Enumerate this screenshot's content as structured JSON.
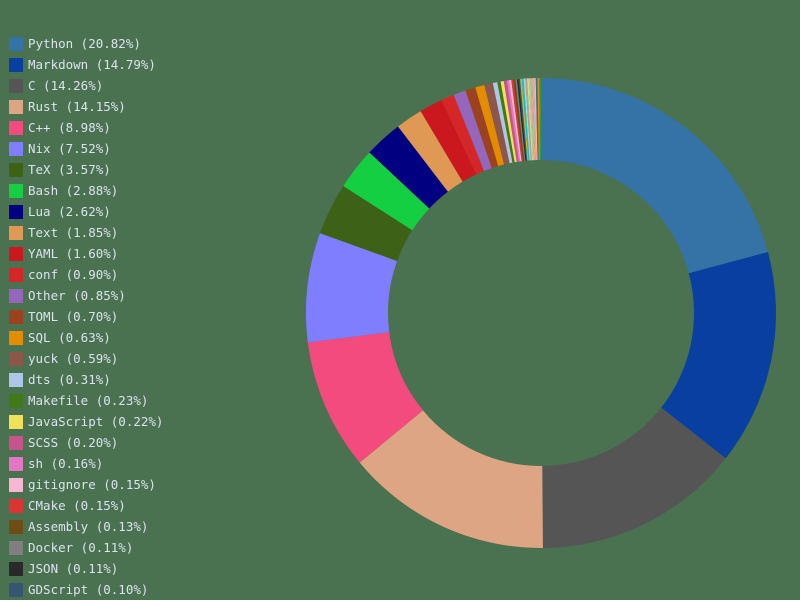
{
  "chart_data": {
    "type": "pie",
    "subtype": "donut",
    "title": "",
    "legend_position": "left",
    "center": [
      541,
      313
    ],
    "outer_radius": 235,
    "inner_radius": 153,
    "start_angle_deg": 0,
    "direction": "clockwise",
    "slices": [
      {
        "label": "Python",
        "value": 20.82,
        "color": "#3572A5"
      },
      {
        "label": "Markdown",
        "value": 14.79,
        "color": "#083fa1"
      },
      {
        "label": "C",
        "value": 14.26,
        "color": "#555555"
      },
      {
        "label": "Rust",
        "value": 14.15,
        "color": "#dea584"
      },
      {
        "label": "C++",
        "value": 8.98,
        "color": "#f34b7d"
      },
      {
        "label": "Nix",
        "value": 7.52,
        "color": "#7e7eff"
      },
      {
        "label": "TeX",
        "value": 3.57,
        "color": "#3D6117"
      },
      {
        "label": "Bash",
        "value": 2.88,
        "color": "#15cf42"
      },
      {
        "label": "Lua",
        "value": 2.62,
        "color": "#000080"
      },
      {
        "label": "Text",
        "value": 1.85,
        "color": "#df9955"
      },
      {
        "label": "YAML",
        "value": 1.6,
        "color": "#cb171e"
      },
      {
        "label": "conf",
        "value": 0.9,
        "color": "#d62728"
      },
      {
        "label": "Other",
        "value": 0.85,
        "color": "#9467bd"
      },
      {
        "label": "TOML",
        "value": 0.7,
        "color": "#9c4221"
      },
      {
        "label": "SQL",
        "value": 0.63,
        "color": "#e38c00"
      },
      {
        "label": "yuck",
        "value": 0.59,
        "color": "#8c564b"
      },
      {
        "label": "dts",
        "value": 0.31,
        "color": "#aec7e8"
      },
      {
        "label": "Makefile",
        "value": 0.23,
        "color": "#427819"
      },
      {
        "label": "JavaScript",
        "value": 0.22,
        "color": "#f1e05a"
      },
      {
        "label": "SCSS",
        "value": 0.2,
        "color": "#c6538c"
      },
      {
        "label": "sh",
        "value": 0.16,
        "color": "#e377c2"
      },
      {
        "label": "gitignore",
        "value": 0.15,
        "color": "#f7b6d2"
      },
      {
        "label": "CMake",
        "value": 0.15,
        "color": "#DA3434"
      },
      {
        "label": "Assembly",
        "value": 0.13,
        "color": "#6E4C13"
      },
      {
        "label": "Docker",
        "value": 0.11,
        "color": "#7f7f7f"
      },
      {
        "label": "JSON",
        "value": 0.11,
        "color": "#292929"
      },
      {
        "label": "GDScript",
        "value": 0.1,
        "color": "#355570"
      }
    ],
    "unlabeled_tail_colors": [
      "#bcbd22",
      "#17becf",
      "#9edae5",
      "#c49c94",
      "#dbdb8d",
      "#98df8a",
      "#ff9896",
      "#c5b0d5",
      "#ffbb78",
      "#1f77b4",
      "#ff7f0e",
      "#2ca02c"
    ]
  },
  "legend": {
    "items": [
      {
        "text": "Python (20.82%)",
        "color": "#3572A5"
      },
      {
        "text": "Markdown (14.79%)",
        "color": "#083fa1"
      },
      {
        "text": "C (14.26%)",
        "color": "#555555"
      },
      {
        "text": "Rust (14.15%)",
        "color": "#dea584"
      },
      {
        "text": "C++ (8.98%)",
        "color": "#f34b7d"
      },
      {
        "text": "Nix (7.52%)",
        "color": "#7e7eff"
      },
      {
        "text": "TeX (3.57%)",
        "color": "#3D6117"
      },
      {
        "text": "Bash (2.88%)",
        "color": "#15cf42"
      },
      {
        "text": "Lua (2.62%)",
        "color": "#000080"
      },
      {
        "text": "Text (1.85%)",
        "color": "#df9955"
      },
      {
        "text": "YAML (1.60%)",
        "color": "#cb171e"
      },
      {
        "text": "conf (0.90%)",
        "color": "#d62728"
      },
      {
        "text": "Other (0.85%)",
        "color": "#9467bd"
      },
      {
        "text": "TOML (0.70%)",
        "color": "#9c4221"
      },
      {
        "text": "SQL (0.63%)",
        "color": "#e38c00"
      },
      {
        "text": "yuck (0.59%)",
        "color": "#8c564b"
      },
      {
        "text": "dts (0.31%)",
        "color": "#aec7e8"
      },
      {
        "text": "Makefile (0.23%)",
        "color": "#427819"
      },
      {
        "text": "JavaScript (0.22%)",
        "color": "#f1e05a"
      },
      {
        "text": "SCSS (0.20%)",
        "color": "#c6538c"
      },
      {
        "text": "sh (0.16%)",
        "color": "#e377c2"
      },
      {
        "text": "gitignore (0.15%)",
        "color": "#f7b6d2"
      },
      {
        "text": "CMake (0.15%)",
        "color": "#DA3434"
      },
      {
        "text": "Assembly (0.13%)",
        "color": "#6E4C13"
      },
      {
        "text": "Docker (0.11%)",
        "color": "#7f7f7f"
      },
      {
        "text": "JSON (0.11%)",
        "color": "#292929"
      },
      {
        "text": "GDScript (0.10%)",
        "color": "#355570"
      }
    ]
  }
}
